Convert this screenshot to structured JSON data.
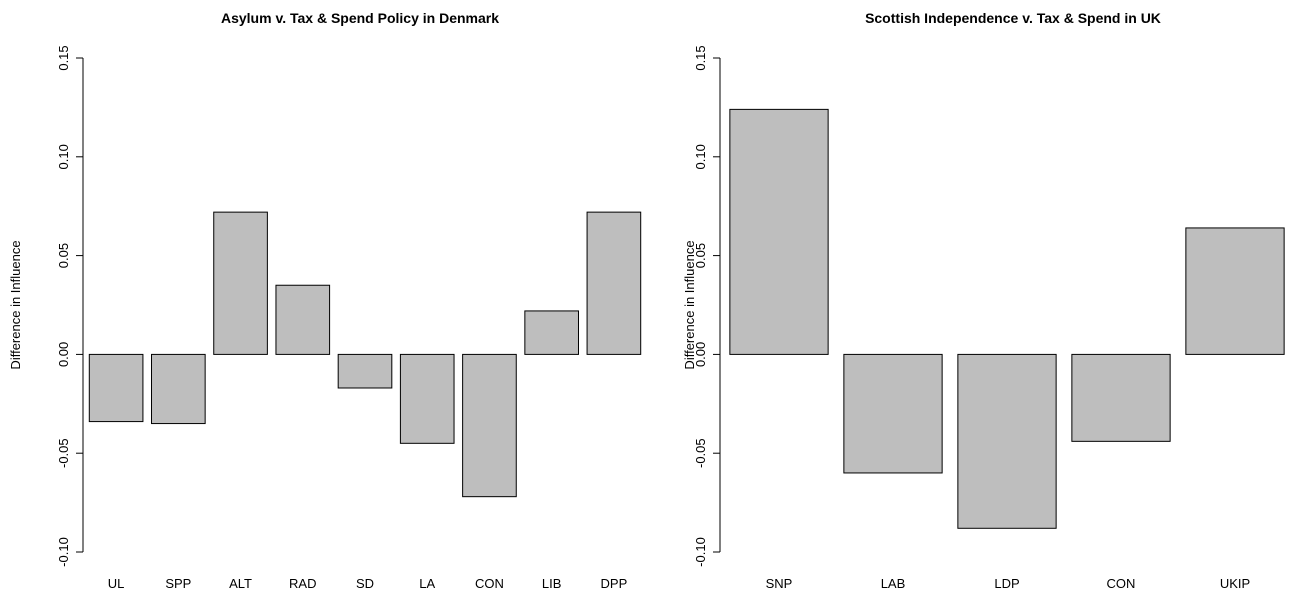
{
  "chart_data": [
    {
      "type": "bar",
      "title": "Asylum v. Tax & Spend Policy in Denmark",
      "ylabel": "Difference in Influence",
      "xlabel": "",
      "ylim": [
        -0.1,
        0.15
      ],
      "yticks": [
        "-0.10",
        "-0.05",
        "0.00",
        "0.05",
        "0.10",
        "0.15"
      ],
      "categories": [
        "UL",
        "SPP",
        "ALT",
        "RAD",
        "SD",
        "LA",
        "CON",
        "LIB",
        "DPP"
      ],
      "values": [
        -0.034,
        -0.035,
        0.072,
        0.035,
        -0.017,
        -0.045,
        -0.072,
        0.022,
        0.072
      ],
      "bar_color": "#bebebe",
      "grid": false
    },
    {
      "type": "bar",
      "title": "Scottish Independence v. Tax & Spend in UK",
      "ylabel": "Difference in Influence",
      "xlabel": "",
      "ylim": [
        -0.1,
        0.15
      ],
      "yticks": [
        "-0.10",
        "-0.05",
        "0.00",
        "0.05",
        "0.10",
        "0.15"
      ],
      "categories": [
        "SNP",
        "LAB",
        "LDP",
        "CON",
        "UKIP"
      ],
      "values": [
        0.124,
        -0.06,
        -0.088,
        -0.044,
        0.064
      ],
      "bar_color": "#bebebe",
      "grid": false
    }
  ]
}
